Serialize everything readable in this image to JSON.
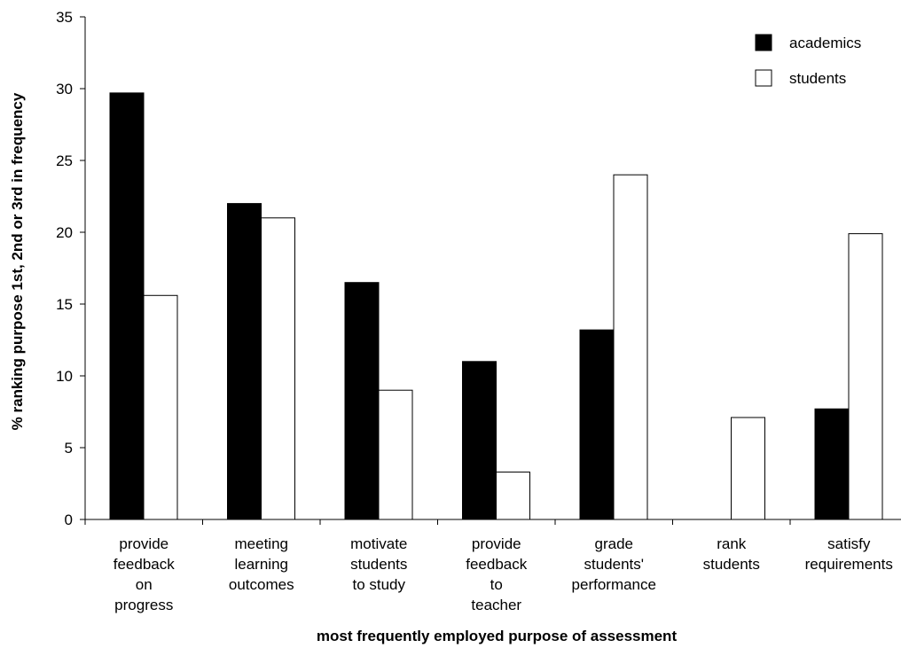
{
  "chart_data": {
    "type": "bar",
    "categories": [
      [
        "provide",
        "feedback",
        "on",
        "progress"
      ],
      [
        "meeting",
        "learning",
        "outcomes"
      ],
      [
        "motivate",
        "students",
        "to study"
      ],
      [
        "provide",
        "feedback",
        "to",
        "teacher"
      ],
      [
        "grade",
        "students'",
        "performance"
      ],
      [
        "rank",
        "students"
      ],
      [
        "satisfy",
        "requirements"
      ]
    ],
    "series": [
      {
        "name": "academics",
        "color": "#000000",
        "values": [
          29.7,
          22.0,
          16.5,
          11.0,
          13.2,
          0,
          7.7
        ]
      },
      {
        "name": "students",
        "color": "#ffffff",
        "values": [
          15.6,
          21.0,
          9.0,
          3.3,
          24.0,
          7.1,
          19.9
        ]
      }
    ],
    "xlabel": "most frequently employed purpose of assessment",
    "ylabel": "% ranking purpose 1st, 2nd or 3rd in frequency",
    "ylim": [
      0,
      35
    ],
    "yticks": [
      "0",
      "5",
      "10",
      "15",
      "20",
      "25",
      "30",
      "35"
    ],
    "grid": false,
    "legend_position": "top-right"
  }
}
